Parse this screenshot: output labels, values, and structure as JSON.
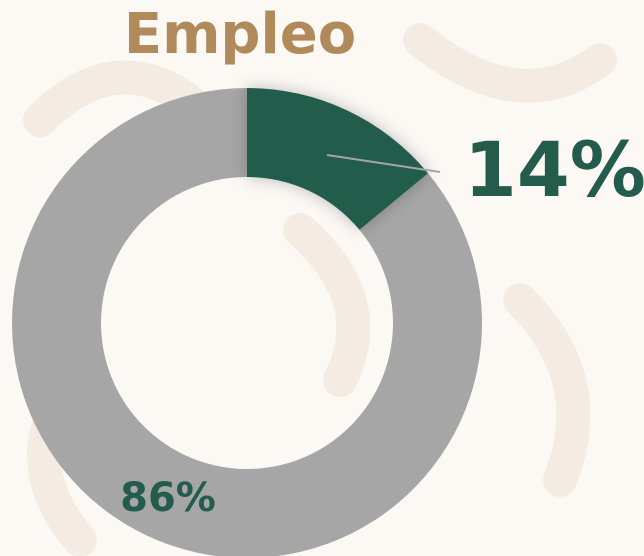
{
  "chart_data": {
    "type": "pie",
    "title": "Empleo",
    "categories": [
      null,
      null
    ],
    "values": [
      14,
      86
    ],
    "value_labels": [
      "14%",
      "86%"
    ],
    "colors": [
      "#245c4c",
      "#a6a6a6"
    ],
    "donut": true
  }
}
